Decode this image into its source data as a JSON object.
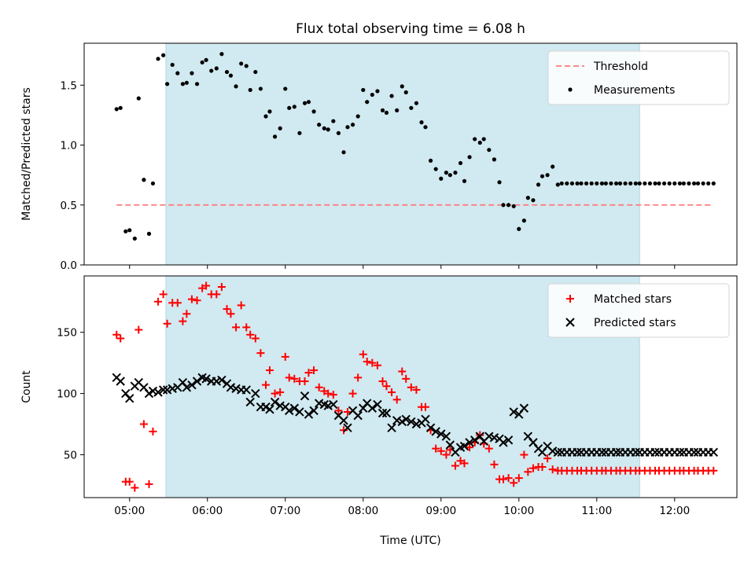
{
  "chart_data": {
    "title": "Flux total observing time = 6.08 h",
    "xlabel": "Time (UTC)",
    "x_ticks": [
      "05:00",
      "06:00",
      "07:00",
      "08:00",
      "09:00",
      "10:00",
      "11:00",
      "12:00"
    ],
    "observing_window": {
      "start": "05:28",
      "end": "11:33",
      "color": "#add8e6"
    },
    "colors": {
      "threshold": "#ff7777",
      "measurements": "#000000",
      "matched": "#ff0000",
      "predicted": "#000000",
      "span": "#d1e9f0"
    },
    "panels": [
      {
        "type": "scatter",
        "ylabel": "Matched/Predicted stars",
        "ylim": [
          0,
          1.85
        ],
        "yticks": [
          "0.0",
          "0.5",
          "1.0",
          "1.5"
        ],
        "legend": "top-right",
        "threshold": {
          "name": "Threshold",
          "value": 0.5,
          "x_range": [
            "04:50",
            "12:30"
          ]
        },
        "series": [
          {
            "name": "Measurements",
            "x": [
              "04:50",
              "04:53",
              "04:57",
              "05:00",
              "05:04",
              "05:07",
              "05:11",
              "05:15",
              "05:18",
              "05:22",
              "05:26",
              "05:29",
              "05:33",
              "05:37",
              "05:41",
              "05:44",
              "05:48",
              "05:52",
              "05:56",
              "05:59",
              "06:03",
              "06:07",
              "06:11",
              "06:15",
              "06:18",
              "06:22",
              "06:26",
              "06:30",
              "06:33",
              "06:37",
              "06:41",
              "06:45",
              "06:48",
              "06:52",
              "06:56",
              "07:00",
              "07:03",
              "07:07",
              "07:11",
              "07:15",
              "07:18",
              "07:22",
              "07:26",
              "07:30",
              "07:33",
              "07:37",
              "07:41",
              "07:45",
              "07:48",
              "07:52",
              "07:56",
              "08:00",
              "08:03",
              "08:07",
              "08:11",
              "08:15",
              "08:18",
              "08:22",
              "08:26",
              "08:30",
              "08:33",
              "08:37",
              "08:41",
              "08:45",
              "08:48",
              "08:52",
              "08:56",
              "09:00",
              "09:04",
              "09:07",
              "09:11",
              "09:15",
              "09:18",
              "09:22",
              "09:26",
              "09:30",
              "09:33",
              "09:37",
              "09:41",
              "09:45",
              "09:48",
              "09:52",
              "09:56",
              "10:00",
              "10:04",
              "10:07",
              "10:11",
              "10:15",
              "10:18",
              "10:22",
              "10:26",
              "10:30",
              "10:33",
              "10:37",
              "10:41",
              "10:45",
              "10:48",
              "10:52",
              "10:56",
              "11:00",
              "11:04",
              "11:07",
              "11:11",
              "11:15",
              "11:18",
              "11:22",
              "11:26",
              "11:30",
              "11:33",
              "11:37",
              "11:41",
              "11:45",
              "11:48",
              "11:52",
              "11:56",
              "12:00",
              "12:04",
              "12:07",
              "12:11",
              "12:15",
              "12:18",
              "12:22",
              "12:26",
              "12:30"
            ],
            "y": [
              1.3,
              1.31,
              0.28,
              0.29,
              0.22,
              1.39,
              0.71,
              0.26,
              0.68,
              1.72,
              1.75,
              1.51,
              1.67,
              1.6,
              1.51,
              1.52,
              1.6,
              1.51,
              1.69,
              1.71,
              1.62,
              1.64,
              1.76,
              1.61,
              1.58,
              1.49,
              1.68,
              1.66,
              1.46,
              1.61,
              1.47,
              1.24,
              1.28,
              1.07,
              1.14,
              1.47,
              1.31,
              1.32,
              1.1,
              1.35,
              1.36,
              1.28,
              1.17,
              1.14,
              1.13,
              1.2,
              1.1,
              0.94,
              1.15,
              1.17,
              1.24,
              1.46,
              1.36,
              1.42,
              1.45,
              1.29,
              1.27,
              1.41,
              1.29,
              1.49,
              1.44,
              1.31,
              1.35,
              1.19,
              1.15,
              0.87,
              0.8,
              0.72,
              0.77,
              0.75,
              0.77,
              0.85,
              0.7,
              0.9,
              1.05,
              1.02,
              1.05,
              0.96,
              0.88,
              0.69,
              0.5,
              0.5,
              0.49,
              0.3,
              0.37,
              0.56,
              0.54,
              0.67,
              0.74,
              0.75,
              0.82,
              0.67,
              0.68,
              0.68,
              0.68,
              0.68,
              0.68,
              0.68,
              0.68,
              0.68,
              0.68,
              0.68,
              0.68,
              0.68,
              0.68,
              0.68,
              0.68,
              0.68,
              0.68,
              0.68,
              0.68,
              0.68,
              0.68,
              0.68,
              0.68,
              0.68,
              0.68,
              0.68,
              0.68,
              0.68,
              0.68,
              0.68,
              0.68,
              0.68
            ]
          }
        ]
      },
      {
        "type": "scatter",
        "ylabel": "Count",
        "ylim": [
          15,
          196
        ],
        "yticks": [
          "50",
          "100",
          "150"
        ],
        "legend": "top-right",
        "series": [
          {
            "name": "Matched stars",
            "x": [
              "04:50",
              "04:53",
              "04:57",
              "05:00",
              "05:04",
              "05:07",
              "05:11",
              "05:15",
              "05:18",
              "05:22",
              "05:26",
              "05:29",
              "05:33",
              "05:37",
              "05:41",
              "05:44",
              "05:48",
              "05:52",
              "05:56",
              "05:59",
              "06:03",
              "06:07",
              "06:11",
              "06:15",
              "06:18",
              "06:22",
              "06:26",
              "06:30",
              "06:33",
              "06:37",
              "06:41",
              "06:45",
              "06:48",
              "06:52",
              "06:56",
              "07:00",
              "07:03",
              "07:07",
              "07:11",
              "07:15",
              "07:18",
              "07:22",
              "07:26",
              "07:30",
              "07:33",
              "07:37",
              "07:41",
              "07:45",
              "07:48",
              "07:52",
              "07:56",
              "08:00",
              "08:03",
              "08:07",
              "08:11",
              "08:15",
              "08:18",
              "08:22",
              "08:26",
              "08:30",
              "08:33",
              "08:37",
              "08:41",
              "08:45",
              "08:48",
              "08:52",
              "08:56",
              "09:00",
              "09:04",
              "09:07",
              "09:11",
              "09:15",
              "09:18",
              "09:22",
              "09:26",
              "09:30",
              "09:33",
              "09:37",
              "09:41",
              "09:45",
              "09:48",
              "09:52",
              "09:56",
              "10:00",
              "10:04",
              "10:07",
              "10:11",
              "10:15",
              "10:18",
              "10:22",
              "10:26",
              "10:30",
              "10:33",
              "10:37",
              "10:41",
              "10:45",
              "10:48",
              "10:52",
              "10:56",
              "11:00",
              "11:04",
              "11:07",
              "11:11",
              "11:15",
              "11:18",
              "11:22",
              "11:26",
              "11:30",
              "11:33",
              "11:37",
              "11:41",
              "11:45",
              "11:48",
              "11:52",
              "11:56",
              "12:00",
              "12:04",
              "12:07",
              "12:11",
              "12:15",
              "12:18",
              "12:22",
              "12:26",
              "12:30"
            ],
            "y": [
              148,
              145,
              28,
              28,
              23,
              152,
              75,
              26,
              69,
              175,
              181,
              157,
              174,
              174,
              159,
              165,
              177,
              176,
              186,
              188,
              181,
              181,
              187,
              169,
              165,
              154,
              172,
              154,
              148,
              145,
              133,
              107,
              119,
              100,
              101,
              130,
              113,
              112,
              110,
              110,
              117,
              119,
              105,
              102,
              100,
              99,
              86,
              70,
              85,
              100,
              113,
              132,
              126,
              125,
              123,
              110,
              106,
              101,
              95,
              118,
              112,
              105,
              103,
              89,
              89,
              70,
              55,
              53,
              50,
              54,
              41,
              45,
              43,
              56,
              60,
              66,
              59,
              55,
              42,
              30,
              30,
              31,
              27,
              31,
              50,
              36,
              39,
              40,
              40,
              47,
              38,
              37,
              37,
              37,
              37,
              37,
              37,
              37,
              37,
              37,
              37,
              37,
              37,
              37,
              37,
              37,
              37,
              37,
              37,
              37,
              37,
              37,
              37,
              37,
              37,
              37,
              37,
              37,
              37,
              37,
              37,
              37,
              37,
              37
            ]
          },
          {
            "name": "Predicted stars",
            "x": [
              "04:50",
              "04:53",
              "04:57",
              "05:00",
              "05:04",
              "05:07",
              "05:11",
              "05:15",
              "05:18",
              "05:22",
              "05:26",
              "05:29",
              "05:33",
              "05:37",
              "05:41",
              "05:44",
              "05:48",
              "05:52",
              "05:56",
              "05:59",
              "06:03",
              "06:07",
              "06:11",
              "06:15",
              "06:18",
              "06:22",
              "06:26",
              "06:30",
              "06:33",
              "06:37",
              "06:41",
              "06:45",
              "06:48",
              "06:52",
              "06:56",
              "07:00",
              "07:03",
              "07:07",
              "07:11",
              "07:15",
              "07:18",
              "07:22",
              "07:26",
              "07:30",
              "07:33",
              "07:37",
              "07:41",
              "07:45",
              "07:48",
              "07:52",
              "07:56",
              "08:00",
              "08:03",
              "08:07",
              "08:11",
              "08:15",
              "08:18",
              "08:22",
              "08:26",
              "08:30",
              "08:33",
              "08:37",
              "08:41",
              "08:45",
              "08:48",
              "08:52",
              "08:56",
              "09:00",
              "09:04",
              "09:07",
              "09:11",
              "09:15",
              "09:18",
              "09:22",
              "09:26",
              "09:30",
              "09:33",
              "09:37",
              "09:41",
              "09:45",
              "09:48",
              "09:52",
              "09:56",
              "10:00",
              "10:04",
              "10:07",
              "10:11",
              "10:15",
              "10:18",
              "10:22",
              "10:26",
              "10:30",
              "10:33",
              "10:37",
              "10:41",
              "10:45",
              "10:48",
              "10:52",
              "10:56",
              "11:00",
              "11:04",
              "11:07",
              "11:11",
              "11:15",
              "11:18",
              "11:22",
              "11:26",
              "11:30",
              "11:33",
              "11:37",
              "11:41",
              "11:45",
              "11:48",
              "11:52",
              "11:56",
              "12:00",
              "12:04",
              "12:07",
              "12:11",
              "12:15",
              "12:18",
              "12:22",
              "12:26",
              "12:30"
            ],
            "y": [
              113,
              110,
              100,
              96,
              106,
              109,
              105,
              100,
              102,
              101,
              103,
              103,
              104,
              105,
              109,
              105,
              107,
              110,
              113,
              112,
              110,
              110,
              111,
              108,
              105,
              104,
              103,
              103,
              93,
              100,
              89,
              89,
              87,
              93,
              90,
              89,
              86,
              88,
              85,
              98,
              83,
              86,
              92,
              91,
              90,
              91,
              82,
              78,
              72,
              86,
              82,
              88,
              92,
              88,
              91,
              84,
              84,
              72,
              78,
              77,
              79,
              77,
              75,
              76,
              79,
              72,
              69,
              67,
              65,
              58,
              52,
              56,
              57,
              60,
              62,
              65,
              61,
              65,
              64,
              63,
              60,
              62,
              85,
              83,
              88,
              65,
              60,
              55,
              52,
              57,
              53,
              52,
              52,
              52,
              52,
              52,
              52,
              52,
              52,
              52,
              52,
              52,
              52,
              52,
              52,
              52,
              52,
              52,
              52,
              52,
              52,
              52,
              52,
              52,
              52,
              52,
              52,
              52,
              52,
              52,
              52,
              52,
              52,
              52
            ]
          }
        ]
      }
    ]
  }
}
